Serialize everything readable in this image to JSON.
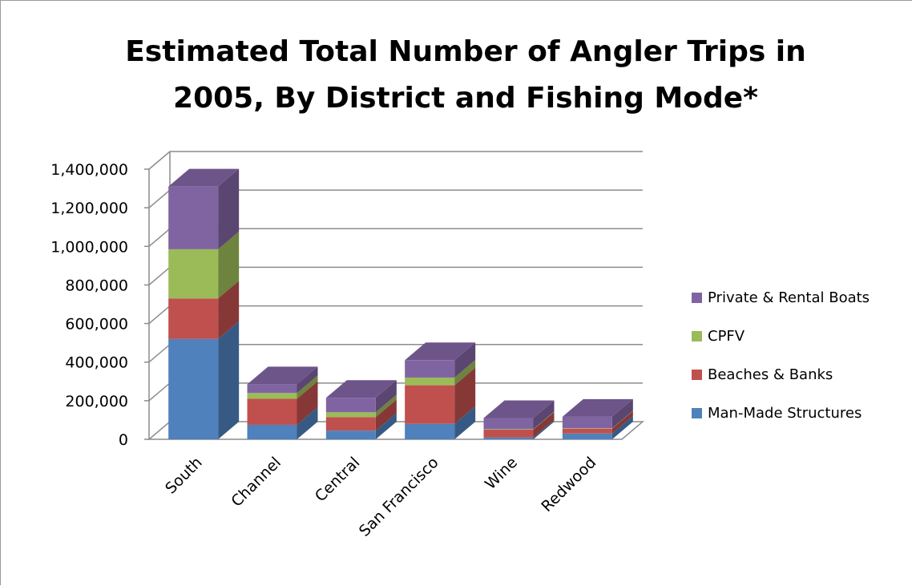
{
  "chart_data": {
    "type": "bar",
    "stacked": true,
    "style": "3d",
    "title_lines": [
      "Estimated Total Number of Angler Trips in",
      "2005, By District and Fishing Mode*"
    ],
    "xlabel": "",
    "ylabel": "",
    "categories": [
      "South",
      "Channel",
      "Central",
      "San Francisco",
      "Wine",
      "Redwood"
    ],
    "y_ticks": [
      "0",
      "200,000",
      "400,000",
      "600,000",
      "800,000",
      "1,000,000",
      "1,200,000",
      "1,400,000"
    ],
    "ylim": [
      0,
      1400000
    ],
    "grid": true,
    "legend_position": "right",
    "series": [
      {
        "name": "Man-Made Structures",
        "color": "#4f81bd",
        "values": [
          520000,
          75000,
          45000,
          80000,
          10000,
          30000
        ]
      },
      {
        "name": "Beaches & Banks",
        "color": "#c0504d",
        "values": [
          210000,
          135000,
          70000,
          200000,
          40000,
          25000
        ]
      },
      {
        "name": "CPFV",
        "color": "#9bbb59",
        "values": [
          255000,
          30000,
          25000,
          40000,
          3000,
          2000
        ]
      },
      {
        "name": "Private & Rental Boats",
        "color": "#8064a2",
        "values": [
          325000,
          45000,
          75000,
          90000,
          57000,
          60000
        ]
      }
    ]
  }
}
